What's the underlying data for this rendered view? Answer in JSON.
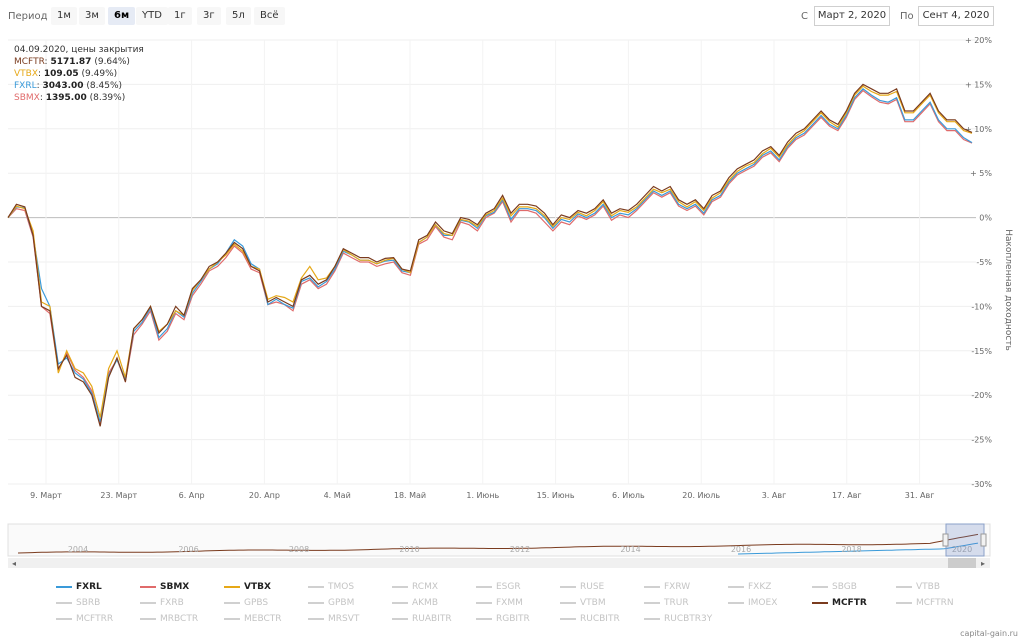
{
  "toolbar": {
    "period_label": "Период",
    "periods": [
      "1м",
      "3м",
      "6м",
      "YTD",
      "1г",
      "3г",
      "5л",
      "Всё"
    ],
    "active_period": "6м",
    "from_label": "С",
    "from_value": "Март 2, 2020",
    "to_label": "По",
    "to_value": "Сент 4, 2020"
  },
  "info": {
    "header": "04.09.2020, цены закрытия",
    "rows": [
      {
        "ticker": "MCFTR",
        "value": "5171.87",
        "pct": "(9.64%)",
        "color": "#7a3b1e"
      },
      {
        "ticker": "VTBX",
        "value": "109.05",
        "pct": "(9.49%)",
        "color": "#e6a817"
      },
      {
        "ticker": "FXRL",
        "value": "3043.00",
        "pct": "(8.45%)",
        "color": "#3a9ad9"
      },
      {
        "ticker": "SBMX",
        "value": "1395.00",
        "pct": "(8.39%)",
        "color": "#e06b6b"
      }
    ]
  },
  "chart_data": {
    "type": "line",
    "ylabel": "Накопленная доходность",
    "ylim": [
      -30,
      20
    ],
    "y_ticks": [
      "+ 20%",
      "+ 15%",
      "+ 10%",
      "+ 5%",
      "0%",
      "-5%",
      "-10%",
      "-15%",
      "-20%",
      "-25%",
      "-30%"
    ],
    "x_ticks": [
      "9. Март",
      "23. Март",
      "6. Апр",
      "20. Апр",
      "4. Май",
      "18. Май",
      "1. Июнь",
      "15. Июнь",
      "6. Июль",
      "20. Июль",
      "3. Авг",
      "17. Авг",
      "31. Авг"
    ],
    "grid": true,
    "series": [
      {
        "name": "MCFTR",
        "color": "#7a3b1e",
        "values": [
          0,
          1.5,
          1.2,
          -2,
          -10,
          -10.5,
          -17,
          -15.5,
          -18,
          -18.5,
          -20,
          -23.5,
          -18,
          -15.8,
          -18.5,
          -12.5,
          -11.5,
          -10,
          -13,
          -12,
          -10,
          -11,
          -8,
          -7,
          -5.5,
          -5,
          -4,
          -2.8,
          -3.5,
          -5.5,
          -6,
          -9.5,
          -9,
          -9.5,
          -10,
          -7,
          -6.5,
          -7.5,
          -7,
          -5.5,
          -3.5,
          -4,
          -4.5,
          -4.5,
          -5,
          -4.6,
          -4.5,
          -5.8,
          -6,
          -2.5,
          -2,
          -0.5,
          -1.5,
          -1.8,
          0,
          -0.2,
          -0.8,
          0.5,
          1,
          2.5,
          0.5,
          1.5,
          1.5,
          1.3,
          0.5,
          -0.8,
          0.3,
          0,
          0.8,
          0.5,
          1,
          2,
          0.5,
          1,
          0.8,
          1.5,
          2.5,
          3.5,
          3,
          3.5,
          2,
          1.5,
          2,
          1,
          2.5,
          3,
          4.5,
          5.5,
          6,
          6.5,
          7.5,
          8,
          7,
          8.5,
          9.5,
          10,
          11,
          12,
          11,
          10.5,
          12,
          14,
          15,
          14.5,
          14,
          14,
          14.5,
          12,
          12,
          13,
          14,
          12,
          11,
          11,
          10,
          9.6
        ]
      },
      {
        "name": "VTBX",
        "color": "#e6a817",
        "values": [
          0,
          1.3,
          1,
          -1.5,
          -9.5,
          -10,
          -17.5,
          -15,
          -17,
          -17.5,
          -19,
          -22.5,
          -17,
          -15,
          -18,
          -12.5,
          -11.5,
          -10,
          -12.8,
          -12,
          -10.5,
          -11,
          -8.2,
          -7,
          -5.8,
          -5,
          -4.2,
          -3,
          -3.8,
          -5.5,
          -5.8,
          -9.2,
          -8.8,
          -9,
          -9.5,
          -6.8,
          -5.5,
          -7,
          -6.8,
          -5.5,
          -3.6,
          -4.2,
          -4.8,
          -4.8,
          -5.2,
          -4.8,
          -4.6,
          -5.8,
          -6.2,
          -2.8,
          -2.2,
          -0.8,
          -1.8,
          -2,
          -0.2,
          -0.4,
          -1,
          0.3,
          0.8,
          2.2,
          0.2,
          1.2,
          1.2,
          1,
          0.2,
          -1,
          0,
          -0.2,
          0.6,
          0.2,
          0.8,
          1.8,
          0.2,
          0.8,
          0.6,
          1.2,
          2.2,
          3.2,
          2.8,
          3.2,
          1.8,
          1.2,
          1.8,
          0.8,
          2.2,
          2.8,
          4.2,
          5.2,
          5.8,
          6.2,
          7.2,
          7.8,
          6.8,
          8.2,
          9.2,
          9.8,
          10.8,
          11.8,
          10.8,
          10.2,
          11.8,
          13.8,
          14.8,
          14.2,
          13.8,
          13.8,
          14.2,
          11.8,
          11.8,
          12.8,
          13.8,
          11.8,
          10.8,
          10.8,
          9.8,
          9.49
        ]
      },
      {
        "name": "FXRL",
        "color": "#3a9ad9",
        "values": [
          0,
          1.2,
          1.1,
          -2,
          -8,
          -10,
          -16.5,
          -15.8,
          -17.5,
          -18.2,
          -19.8,
          -23,
          -17.8,
          -16,
          -18.2,
          -12.8,
          -11.8,
          -10.2,
          -13.5,
          -12.5,
          -10.5,
          -11.2,
          -8.5,
          -7.2,
          -5.8,
          -5.2,
          -4,
          -2.5,
          -3.2,
          -5.2,
          -5.8,
          -9.8,
          -9.2,
          -9.8,
          -10.2,
          -7.2,
          -6.8,
          -7.8,
          -7.2,
          -5.8,
          -3.8,
          -4.2,
          -4.8,
          -4.8,
          -5.2,
          -4.9,
          -4.8,
          -6,
          -6.2,
          -2.8,
          -2.2,
          -0.8,
          -2,
          -2,
          -0.3,
          -0.5,
          -1.2,
          0.2,
          0.6,
          2,
          -0.2,
          1,
          1,
          0.8,
          0,
          -1.2,
          -0.2,
          -0.5,
          0.4,
          0,
          0.5,
          1.5,
          0,
          0.5,
          0.3,
          1,
          2,
          3,
          2.5,
          3,
          1.5,
          1,
          1.5,
          0.5,
          2,
          2.5,
          4,
          5,
          5.5,
          6,
          7,
          7.5,
          6.5,
          8,
          9,
          9.5,
          10.5,
          11.5,
          10.5,
          10,
          11.5,
          13.5,
          14.5,
          13.8,
          13.2,
          13,
          13.5,
          11,
          11,
          12,
          13,
          11,
          10,
          10,
          9,
          8.45
        ]
      },
      {
        "name": "SBMX",
        "color": "#e06b6b",
        "values": [
          0,
          1,
          0.8,
          -2.2,
          -10,
          -10.8,
          -17.2,
          -15.2,
          -17.2,
          -18,
          -19.5,
          -23.2,
          -17.5,
          -16,
          -18.4,
          -13.2,
          -12,
          -10.5,
          -13.8,
          -12.8,
          -10.8,
          -11.5,
          -8.8,
          -7.5,
          -6,
          -5.5,
          -4.5,
          -3.2,
          -4,
          -5.8,
          -6.2,
          -9.8,
          -9.5,
          -9.8,
          -10.5,
          -7.5,
          -7,
          -8,
          -7.5,
          -6,
          -4,
          -4.5,
          -5,
          -5,
          -5.5,
          -5.2,
          -5,
          -6.2,
          -6.5,
          -3,
          -2.5,
          -1,
          -2.2,
          -2.5,
          -0.5,
          -0.8,
          -1.5,
          0,
          0.5,
          1.8,
          -0.5,
          0.8,
          0.8,
          0.5,
          -0.5,
          -1.5,
          -0.5,
          -0.8,
          0.2,
          -0.2,
          0.3,
          1.3,
          -0.3,
          0.3,
          0,
          0.8,
          1.8,
          2.8,
          2.3,
          2.8,
          1.3,
          0.8,
          1.3,
          0.3,
          1.8,
          2.3,
          3.8,
          4.8,
          5.3,
          5.8,
          6.8,
          7.3,
          6.3,
          7.8,
          8.8,
          9.3,
          10.3,
          11.3,
          10.3,
          9.8,
          11.3,
          13.3,
          14.3,
          13.6,
          13,
          12.8,
          13.3,
          10.8,
          10.8,
          11.8,
          12.8,
          10.8,
          9.8,
          9.8,
          8.8,
          8.39
        ]
      }
    ]
  },
  "navigator": {
    "years": [
      "2004",
      "2006",
      "2008",
      "2010",
      "2012",
      "2014",
      "2016",
      "2018",
      "2020"
    ]
  },
  "legend": {
    "items": [
      {
        "label": "FXRL",
        "color": "#3a9ad9",
        "on": true
      },
      {
        "label": "SBMX",
        "color": "#e06b6b",
        "on": true
      },
      {
        "label": "VTBX",
        "color": "#e6a817",
        "on": true
      },
      {
        "label": "TMOS",
        "on": false
      },
      {
        "label": "RCMX",
        "on": false
      },
      {
        "label": "ESGR",
        "on": false
      },
      {
        "label": "RUSE",
        "on": false
      },
      {
        "label": "FXRW",
        "on": false
      },
      {
        "label": "FXKZ",
        "on": false
      },
      {
        "label": "SBGB",
        "on": false
      },
      {
        "label": "VTBB",
        "on": false
      },
      {
        "label": "SBRB",
        "on": false
      },
      {
        "label": "FXRB",
        "on": false
      },
      {
        "label": "GPBS",
        "on": false
      },
      {
        "label": "GPBM",
        "on": false
      },
      {
        "label": "AKMB",
        "on": false
      },
      {
        "label": "FXMM",
        "on": false
      },
      {
        "label": "VTBM",
        "on": false
      },
      {
        "label": "TRUR",
        "on": false
      },
      {
        "label": "IMOEX",
        "on": false
      },
      {
        "label": "MCFTR",
        "color": "#7a3b1e",
        "on": true
      },
      {
        "label": "MCFTRN",
        "on": false
      },
      {
        "label": "MCFTRR",
        "on": false
      },
      {
        "label": "MRBCTR",
        "on": false
      },
      {
        "label": "MEBCTR",
        "on": false
      },
      {
        "label": "MRSVT",
        "on": false
      },
      {
        "label": "RUABITR",
        "on": false
      },
      {
        "label": "RGBITR",
        "on": false
      },
      {
        "label": "RUCBITR",
        "on": false
      },
      {
        "label": "RUCBTR3Y",
        "on": false
      }
    ]
  },
  "watermark": "capital-gain.ru"
}
